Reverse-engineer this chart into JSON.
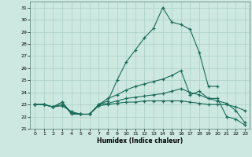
{
  "title": "",
  "xlabel": "Humidex (Indice chaleur)",
  "xlim": [
    -0.5,
    23.5
  ],
  "ylim": [
    21,
    31.5
  ],
  "yticks": [
    21,
    22,
    23,
    24,
    25,
    26,
    27,
    28,
    29,
    30,
    31
  ],
  "xticks": [
    0,
    1,
    2,
    3,
    4,
    5,
    6,
    7,
    8,
    9,
    10,
    11,
    12,
    13,
    14,
    15,
    16,
    17,
    18,
    19,
    20,
    21,
    22,
    23
  ],
  "bg_color": "#cce8e0",
  "grid_color": "#aacfc8",
  "line_color": "#1a6b5a",
  "line1_x": [
    0,
    1,
    2,
    3,
    4,
    5,
    6,
    7,
    8,
    9,
    10,
    11,
    12,
    13,
    14,
    15,
    16,
    17,
    18,
    19,
    20
  ],
  "line1_y": [
    23.0,
    23.0,
    22.8,
    23.2,
    22.2,
    22.2,
    22.2,
    23.0,
    23.3,
    25.0,
    26.5,
    27.5,
    28.5,
    29.3,
    31.0,
    29.8,
    29.6,
    29.2,
    27.3,
    24.5,
    24.5
  ],
  "line2_x": [
    0,
    1,
    2,
    3,
    4,
    5,
    6,
    7,
    8,
    9,
    10,
    11,
    12,
    13,
    14,
    15,
    16,
    17,
    18,
    19,
    20,
    21,
    22,
    23
  ],
  "line2_y": [
    23.0,
    23.0,
    22.8,
    23.2,
    22.3,
    22.2,
    22.2,
    23.0,
    23.5,
    23.8,
    24.2,
    24.5,
    24.7,
    24.9,
    25.1,
    25.4,
    25.8,
    23.8,
    24.1,
    23.5,
    23.5,
    22.0,
    21.8,
    21.3
  ],
  "line3_x": [
    0,
    1,
    2,
    3,
    4,
    5,
    6,
    7,
    8,
    9,
    10,
    11,
    12,
    13,
    14,
    15,
    16,
    17,
    18,
    19,
    20,
    21,
    22,
    23
  ],
  "line3_y": [
    23.0,
    23.0,
    22.8,
    23.0,
    22.4,
    22.2,
    22.2,
    23.0,
    23.1,
    23.3,
    23.5,
    23.6,
    23.7,
    23.8,
    23.9,
    24.1,
    24.3,
    24.0,
    23.8,
    23.5,
    23.3,
    23.1,
    22.5,
    21.5
  ],
  "line4_x": [
    0,
    1,
    2,
    3,
    4,
    5,
    6,
    7,
    8,
    9,
    10,
    11,
    12,
    13,
    14,
    15,
    16,
    17,
    18,
    19,
    20,
    21,
    22,
    23
  ],
  "line4_y": [
    23.0,
    23.0,
    22.8,
    22.9,
    22.4,
    22.2,
    22.2,
    22.9,
    23.0,
    23.1,
    23.2,
    23.2,
    23.3,
    23.3,
    23.3,
    23.3,
    23.3,
    23.2,
    23.1,
    23.0,
    23.0,
    23.0,
    22.8,
    22.5
  ]
}
